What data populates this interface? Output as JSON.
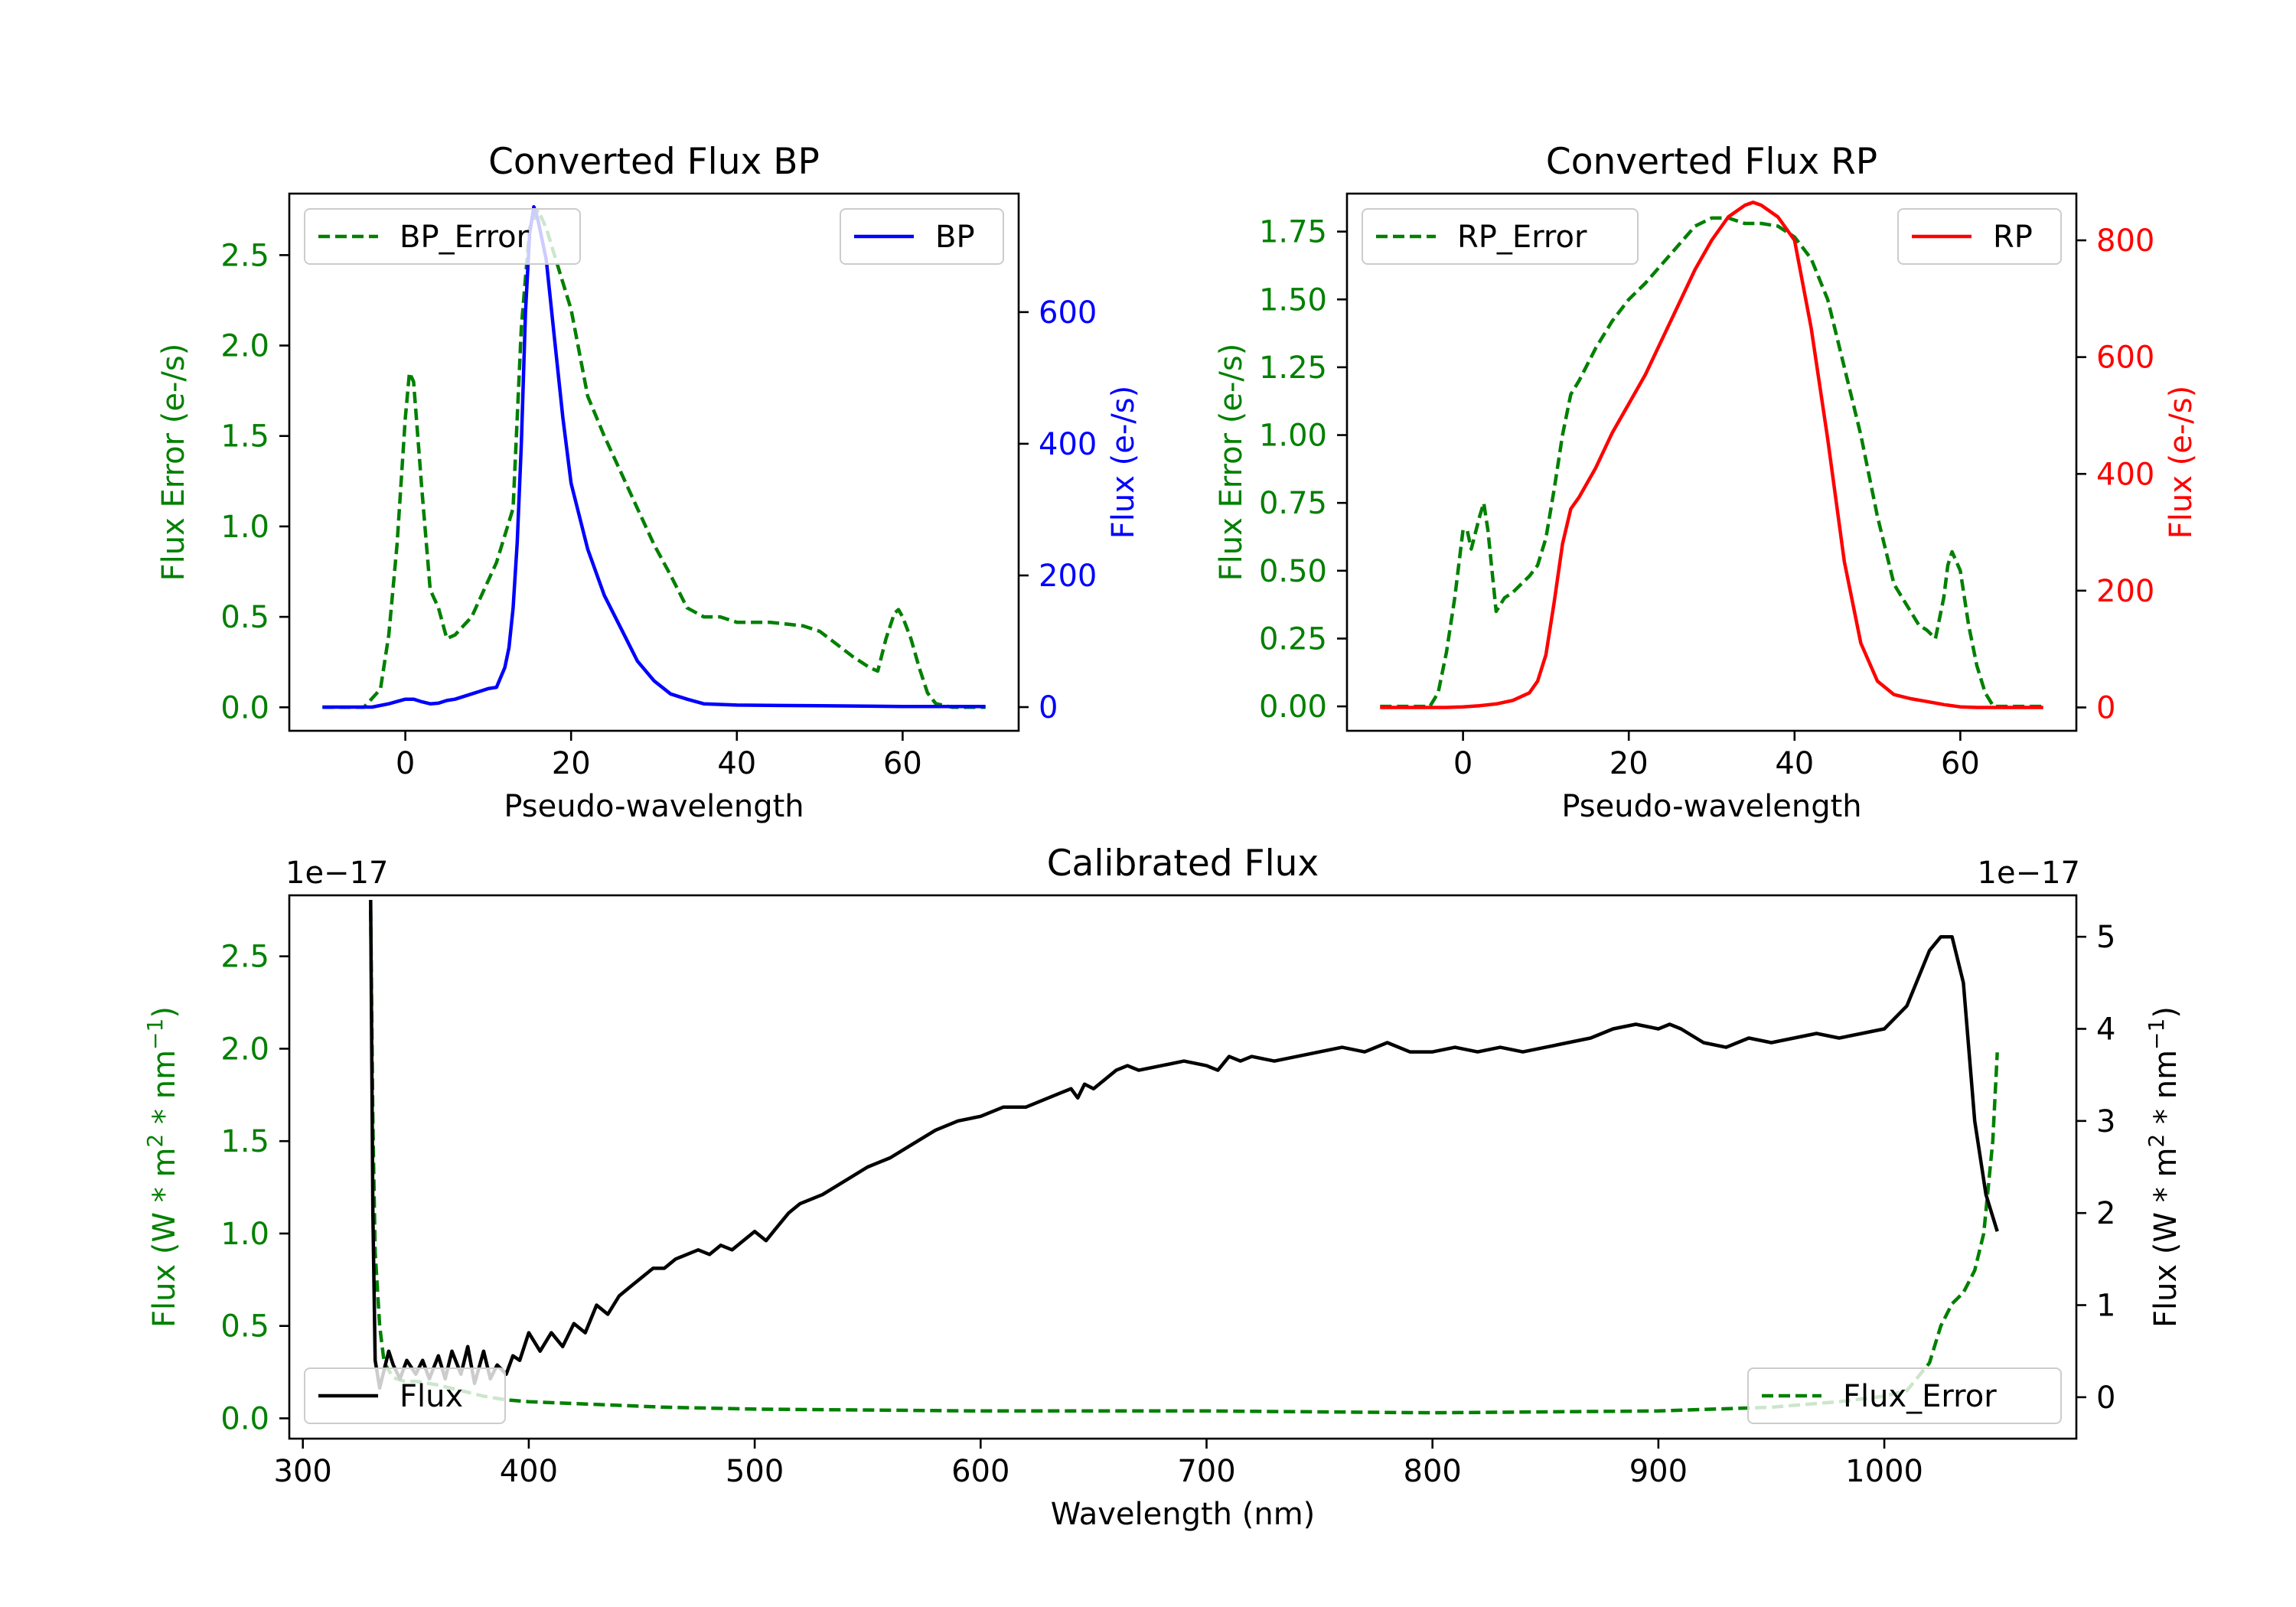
{
  "chart_data": [
    {
      "id": "bp",
      "type": "line",
      "title": "Converted Flux BP",
      "xlabel": "Pseudo-wavelength",
      "ylabel_left": "Flux Error (e-/s)",
      "ylabel_right": "Flux (e-/s)",
      "xlim": [
        -14,
        74
      ],
      "ylim_left": [
        -0.13,
        2.84
      ],
      "ylim_right": [
        -36,
        780
      ],
      "xticks": [
        0,
        20,
        40,
        60
      ],
      "yticks_left": [
        0.0,
        0.5,
        1.0,
        1.5,
        2.0,
        2.5
      ],
      "ytick_labels_left": [
        "0.0",
        "0.5",
        "1.0",
        "1.5",
        "2.0",
        "2.5"
      ],
      "yticks_right": [
        0,
        200,
        400,
        600
      ],
      "ytick_labels_right": [
        "0",
        "200",
        "400",
        "600"
      ],
      "colors": {
        "error": "#008000",
        "flux": "#0000ff"
      },
      "series": [
        {
          "name": "BP_Error",
          "axis": "left",
          "style": "dashed",
          "color": "#008000",
          "x": [
            -10,
            -5,
            -3,
            -2,
            -1,
            0,
            0.5,
            1,
            2,
            3,
            4,
            5,
            6,
            7,
            8,
            9,
            10,
            11,
            12,
            13,
            14,
            15,
            16,
            17,
            18,
            20,
            22,
            24,
            26,
            28,
            30,
            32,
            34,
            36,
            38,
            40,
            42,
            44,
            46,
            48,
            50,
            52,
            54,
            56,
            57,
            58,
            59,
            59.5,
            60,
            61,
            62,
            63,
            64,
            66,
            70
          ],
          "y": [
            0.0,
            0.0,
            0.1,
            0.4,
            0.9,
            1.6,
            1.85,
            1.8,
            1.2,
            0.65,
            0.55,
            0.38,
            0.4,
            0.45,
            0.5,
            0.6,
            0.7,
            0.8,
            0.95,
            1.1,
            2.1,
            2.65,
            2.75,
            2.65,
            2.5,
            2.2,
            1.72,
            1.5,
            1.3,
            1.1,
            0.9,
            0.73,
            0.55,
            0.5,
            0.5,
            0.47,
            0.47,
            0.47,
            0.46,
            0.45,
            0.42,
            0.35,
            0.28,
            0.22,
            0.2,
            0.38,
            0.52,
            0.54,
            0.5,
            0.38,
            0.22,
            0.08,
            0.02,
            0.0,
            0.0
          ]
        },
        {
          "name": "BP",
          "axis": "right",
          "style": "solid",
          "color": "#0000ff",
          "x": [
            -10,
            -4,
            -2,
            0,
            1,
            2,
            3,
            4,
            5,
            6,
            8,
            9,
            10,
            11,
            12,
            12.5,
            13,
            13.5,
            14,
            14.5,
            15,
            15.5,
            16,
            17,
            18,
            19,
            20,
            22,
            24,
            26,
            28,
            30,
            32,
            34,
            36,
            40,
            50,
            60,
            70
          ],
          "y": [
            0,
            0,
            5,
            12,
            12,
            8,
            5,
            6,
            10,
            12,
            20,
            24,
            28,
            30,
            60,
            90,
            150,
            250,
            400,
            600,
            720,
            760,
            740,
            680,
            560,
            440,
            340,
            240,
            170,
            120,
            70,
            40,
            20,
            12,
            5,
            3,
            2,
            1,
            1
          ]
        }
      ],
      "legend": [
        {
          "label": "BP_Error",
          "location": "upper-left"
        },
        {
          "label": "BP",
          "location": "upper-right"
        }
      ]
    },
    {
      "id": "rp",
      "type": "line",
      "title": "Converted Flux RP",
      "xlabel": "Pseudo-wavelength",
      "ylabel_left": "Flux Error (e-/s)",
      "ylabel_right": "Flux (e-/s)",
      "xlim": [
        -14,
        74
      ],
      "ylim_left": [
        -0.09,
        1.89
      ],
      "ylim_right": [
        -40,
        880
      ],
      "xticks": [
        0,
        20,
        40,
        60
      ],
      "yticks_left": [
        0.0,
        0.25,
        0.5,
        0.75,
        1.0,
        1.25,
        1.5,
        1.75
      ],
      "ytick_labels_left": [
        "0.00",
        "0.25",
        "0.50",
        "0.75",
        "1.00",
        "1.25",
        "1.50",
        "1.75"
      ],
      "yticks_right": [
        0,
        200,
        400,
        600,
        800
      ],
      "ytick_labels_right": [
        "0",
        "200",
        "400",
        "600",
        "800"
      ],
      "colors": {
        "error": "#008000",
        "flux": "#ff0000"
      },
      "series": [
        {
          "name": "RP_Error",
          "axis": "left",
          "style": "dashed",
          "color": "#008000",
          "x": [
            -10,
            -4,
            -3,
            -2,
            -1,
            0,
            0.5,
            1,
            2,
            2.5,
            3,
            4,
            5,
            6,
            7,
            8,
            9,
            10,
            11,
            12,
            13,
            14,
            16,
            18,
            20,
            22,
            24,
            26,
            28,
            30,
            32,
            34,
            36,
            38,
            40,
            42,
            44,
            46,
            48,
            50,
            52,
            54,
            55,
            56,
            57,
            58,
            58.5,
            59,
            60,
            61,
            62,
            63,
            64,
            66,
            70
          ],
          "y": [
            0.0,
            0.0,
            0.05,
            0.2,
            0.4,
            0.65,
            0.65,
            0.58,
            0.7,
            0.75,
            0.65,
            0.35,
            0.4,
            0.42,
            0.45,
            0.48,
            0.52,
            0.62,
            0.8,
            1.0,
            1.15,
            1.2,
            1.32,
            1.42,
            1.5,
            1.56,
            1.63,
            1.7,
            1.77,
            1.8,
            1.8,
            1.78,
            1.78,
            1.77,
            1.73,
            1.65,
            1.5,
            1.25,
            1.0,
            0.7,
            0.45,
            0.35,
            0.3,
            0.28,
            0.25,
            0.4,
            0.52,
            0.57,
            0.5,
            0.3,
            0.15,
            0.05,
            0.0,
            0.0,
            0.0
          ]
        },
        {
          "name": "RP",
          "axis": "right",
          "style": "solid",
          "color": "#ff0000",
          "x": [
            -10,
            -2,
            0,
            2,
            4,
            6,
            8,
            9,
            10,
            11,
            12,
            13,
            14,
            16,
            18,
            20,
            22,
            24,
            26,
            28,
            30,
            32,
            34,
            35,
            36,
            38,
            40,
            42,
            44,
            46,
            48,
            50,
            52,
            54,
            56,
            58,
            60,
            62,
            64,
            66,
            70
          ],
          "y": [
            0,
            0,
            1,
            3,
            6,
            12,
            25,
            45,
            90,
            180,
            280,
            340,
            360,
            410,
            470,
            520,
            570,
            630,
            690,
            750,
            800,
            840,
            860,
            865,
            860,
            840,
            800,
            650,
            460,
            250,
            110,
            45,
            22,
            15,
            10,
            5,
            1,
            0,
            0,
            0,
            0
          ]
        }
      ],
      "legend": [
        {
          "label": "RP_Error",
          "location": "upper-left"
        },
        {
          "label": "RP",
          "location": "upper-right"
        }
      ]
    },
    {
      "id": "cal",
      "type": "line",
      "title": "Calibrated Flux",
      "xlabel": "Wavelength (nm)",
      "ylabel_left": "Flux (W * m^2 * nm^-1)",
      "ylabel_right": "Flux (W * m^2 * nm^-1)",
      "ylabel_parts": {
        "pre": "Flux (W * m",
        "sup1": "2",
        "mid": " * nm",
        "sup2": "−1",
        "post": ")"
      },
      "offset_left": "1e−17",
      "offset_right": "1e−17",
      "xlim": [
        294,
        1085
      ],
      "ylim_left": [
        -0.11,
        2.83
      ],
      "ylim_right": [
        -0.45,
        5.45
      ],
      "xticks": [
        300,
        400,
        500,
        600,
        700,
        800,
        900,
        1000
      ],
      "yticks_left": [
        0.0,
        0.5,
        1.0,
        1.5,
        2.0,
        2.5
      ],
      "ytick_labels_left": [
        "0.0",
        "0.5",
        "1.0",
        "1.5",
        "2.0",
        "2.5"
      ],
      "yticks_right": [
        0,
        1,
        2,
        3,
        4,
        5
      ],
      "ytick_labels_right": [
        "0",
        "1",
        "2",
        "3",
        "4",
        "5"
      ],
      "colors": {
        "error": "#008000",
        "flux": "#000000"
      },
      "series": [
        {
          "name": "Flux_Error",
          "axis": "left",
          "style": "dashed",
          "color": "#008000",
          "x": [
            330,
            331,
            332,
            334,
            336,
            340,
            345,
            350,
            360,
            370,
            380,
            390,
            400,
            420,
            440,
            460,
            500,
            600,
            700,
            800,
            900,
            950,
            980,
            1000,
            1010,
            1020,
            1025,
            1030,
            1035,
            1040,
            1044,
            1048,
            1050
          ],
          "y": [
            2.75,
            1.6,
            0.9,
            0.5,
            0.3,
            0.22,
            0.2,
            0.2,
            0.18,
            0.15,
            0.12,
            0.1,
            0.09,
            0.08,
            0.07,
            0.06,
            0.05,
            0.04,
            0.04,
            0.03,
            0.04,
            0.06,
            0.09,
            0.12,
            0.15,
            0.3,
            0.5,
            0.62,
            0.68,
            0.8,
            1.0,
            1.5,
            1.98
          ]
        },
        {
          "name": "Flux",
          "axis": "right",
          "style": "solid",
          "color": "#000000",
          "x": [
            330,
            331,
            332,
            334,
            336,
            338,
            340,
            343,
            346,
            350,
            353,
            356,
            360,
            363,
            366,
            370,
            373,
            376,
            380,
            383,
            386,
            390,
            393,
            396,
            400,
            405,
            410,
            415,
            420,
            425,
            430,
            435,
            440,
            445,
            450,
            455,
            460,
            465,
            470,
            475,
            480,
            485,
            490,
            495,
            500,
            505,
            510,
            515,
            520,
            525,
            530,
            540,
            550,
            560,
            570,
            580,
            590,
            600,
            610,
            620,
            630,
            635,
            640,
            643,
            646,
            650,
            660,
            665,
            670,
            680,
            690,
            700,
            705,
            710,
            715,
            720,
            730,
            740,
            750,
            760,
            770,
            780,
            790,
            800,
            810,
            820,
            830,
            840,
            850,
            860,
            870,
            880,
            890,
            900,
            905,
            910,
            920,
            930,
            940,
            950,
            960,
            970,
            980,
            990,
            1000,
            1010,
            1020,
            1025,
            1030,
            1035,
            1040,
            1045,
            1050
          ],
          "y": [
            5.4,
            2.0,
            0.4,
            0.1,
            0.3,
            0.5,
            0.35,
            0.2,
            0.4,
            0.25,
            0.4,
            0.2,
            0.45,
            0.2,
            0.5,
            0.25,
            0.55,
            0.15,
            0.5,
            0.2,
            0.35,
            0.25,
            0.45,
            0.4,
            0.7,
            0.5,
            0.7,
            0.55,
            0.8,
            0.7,
            1.0,
            0.9,
            1.1,
            1.2,
            1.3,
            1.4,
            1.4,
            1.5,
            1.55,
            1.6,
            1.55,
            1.65,
            1.6,
            1.7,
            1.8,
            1.7,
            1.85,
            2.0,
            2.1,
            2.15,
            2.2,
            2.35,
            2.5,
            2.6,
            2.75,
            2.9,
            3.0,
            3.05,
            3.15,
            3.15,
            3.25,
            3.3,
            3.35,
            3.25,
            3.4,
            3.35,
            3.55,
            3.6,
            3.55,
            3.6,
            3.65,
            3.6,
            3.55,
            3.7,
            3.65,
            3.7,
            3.65,
            3.7,
            3.75,
            3.8,
            3.75,
            3.85,
            3.75,
            3.75,
            3.8,
            3.75,
            3.8,
            3.75,
            3.8,
            3.85,
            3.9,
            4.0,
            4.05,
            4.0,
            4.05,
            4.0,
            3.85,
            3.8,
            3.9,
            3.85,
            3.9,
            3.95,
            3.9,
            3.95,
            4.0,
            4.25,
            4.85,
            5.0,
            5.0,
            4.5,
            3.0,
            2.2,
            1.8
          ]
        }
      ],
      "legend": [
        {
          "label": "Flux",
          "location": "lower-left"
        },
        {
          "label": "Flux_Error",
          "location": "lower-right"
        }
      ]
    }
  ]
}
